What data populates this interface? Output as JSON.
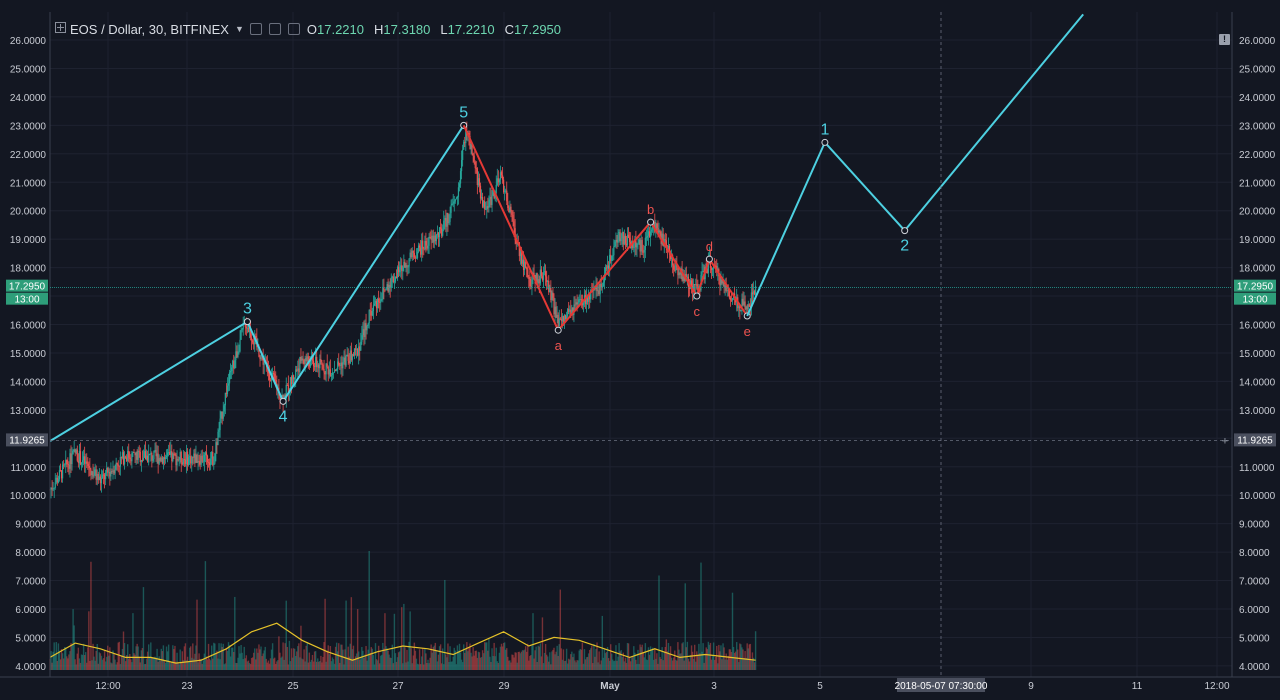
{
  "legend": {
    "symbol": "EOS / Dollar, 30, BITFINEX",
    "open_label": "O",
    "open": "17.2210",
    "high_label": "H",
    "high": "17.3180",
    "low_label": "L",
    "low": "17.2210",
    "close_label": "C",
    "close": "17.2950"
  },
  "chart_data": {
    "type": "candlestick",
    "y_ticks": [
      "26.0000",
      "25.0000",
      "24.0000",
      "23.0000",
      "22.0000",
      "21.0000",
      "20.0000",
      "19.0000",
      "18.0000",
      "17.0000",
      "16.0000",
      "15.0000",
      "14.0000",
      "13.0000",
      "12.0000",
      "11.0000",
      "10.0000",
      "9.0000",
      "8.0000",
      "7.0000",
      "6.0000",
      "5.0000",
      "4.0000"
    ],
    "x_ticks": [
      "12:00",
      "23",
      "25",
      "27",
      "29",
      "May",
      "3",
      "5",
      "9",
      "11",
      "12:00"
    ],
    "price_label": "17.2950",
    "price_time_label": "13:00",
    "crosshair_price_label": "11.9265",
    "crosshair_time_label": "2018-05-07 07:30:00",
    "price_series": [
      {
        "t": "Apr 21 00:00",
        "v": 10.2
      },
      {
        "t": "Apr 21 12:00",
        "v": 11.5
      },
      {
        "t": "Apr 22 00:00",
        "v": 10.5
      },
      {
        "t": "Apr 22 12:00",
        "v": 11.4
      },
      {
        "t": "Apr 23 12:00",
        "v": 11.3
      },
      {
        "t": "Apr 24 06:00",
        "v": 11.3
      },
      {
        "t": "Apr 24 12:00",
        "v": 13.7
      },
      {
        "t": "Apr 24 21:00",
        "v": 16.1
      },
      {
        "t": "Apr 25 07:00",
        "v": 14.5
      },
      {
        "t": "Apr 25 15:00",
        "v": 13.4
      },
      {
        "t": "Apr 26 00:00",
        "v": 14.8
      },
      {
        "t": "Apr 26 14:00",
        "v": 14.4
      },
      {
        "t": "Apr 27 02:00",
        "v": 15.0
      },
      {
        "t": "Apr 27 09:00",
        "v": 16.5
      },
      {
        "t": "Apr 27 18:00",
        "v": 17.5
      },
      {
        "t": "Apr 28 07:00",
        "v": 18.6
      },
      {
        "t": "Apr 28 18:00",
        "v": 19.2
      },
      {
        "t": "Apr 29 02:00",
        "v": 20.5
      },
      {
        "t": "Apr 29 06:00",
        "v": 22.9
      },
      {
        "t": "Apr 29 15:00",
        "v": 20.0
      },
      {
        "t": "Apr 29 23:00",
        "v": 21.2
      },
      {
        "t": "Apr 30 06:00",
        "v": 19.0
      },
      {
        "t": "Apr 30 12:00",
        "v": 17.5
      },
      {
        "t": "Apr 30 20:00",
        "v": 17.8
      },
      {
        "t": "May 1 02:00",
        "v": 16.0
      },
      {
        "t": "May 1 12:00",
        "v": 16.7
      },
      {
        "t": "May 1 21:00",
        "v": 17.2
      },
      {
        "t": "May 2 07:00",
        "v": 19.1
      },
      {
        "t": "May 2 18:00",
        "v": 18.7
      },
      {
        "t": "May 3 00:00",
        "v": 19.5
      },
      {
        "t": "May 3 10:00",
        "v": 18.0
      },
      {
        "t": "May 3 20:00",
        "v": 17.2
      },
      {
        "t": "May 4 02:00",
        "v": 18.2
      },
      {
        "t": "May 4 12:00",
        "v": 17.0
      },
      {
        "t": "May 4 20:00",
        "v": 16.5
      },
      {
        "t": "May 5 00:00",
        "v": 17.3
      }
    ],
    "volume_ma": [
      {
        "t": "Apr 21 00:00",
        "v": 4.3
      },
      {
        "t": "Apr 21 12:00",
        "v": 4.8
      },
      {
        "t": "Apr 22 00:00",
        "v": 4.6
      },
      {
        "t": "Apr 22 12:00",
        "v": 4.3
      },
      {
        "t": "Apr 23 00:00",
        "v": 4.3
      },
      {
        "t": "Apr 23 12:00",
        "v": 4.1
      },
      {
        "t": "Apr 24 00:00",
        "v": 4.2
      },
      {
        "t": "Apr 24 12:00",
        "v": 4.6
      },
      {
        "t": "Apr 25 00:00",
        "v": 5.2
      },
      {
        "t": "Apr 25 12:00",
        "v": 5.5
      },
      {
        "t": "Apr 26 00:00",
        "v": 4.9
      },
      {
        "t": "Apr 26 12:00",
        "v": 4.5
      },
      {
        "t": "Apr 27 00:00",
        "v": 4.2
      },
      {
        "t": "Apr 27 12:00",
        "v": 4.5
      },
      {
        "t": "Apr 28 00:00",
        "v": 4.7
      },
      {
        "t": "Apr 28 12:00",
        "v": 4.6
      },
      {
        "t": "Apr 29 00:00",
        "v": 4.4
      },
      {
        "t": "Apr 29 12:00",
        "v": 4.8
      },
      {
        "t": "Apr 30 00:00",
        "v": 5.2
      },
      {
        "t": "Apr 30 12:00",
        "v": 4.7
      },
      {
        "t": "May 1 00:00",
        "v": 5.0
      },
      {
        "t": "May 1 12:00",
        "v": 4.9
      },
      {
        "t": "May 2 00:00",
        "v": 4.6
      },
      {
        "t": "May 2 12:00",
        "v": 4.3
      },
      {
        "t": "May 3 00:00",
        "v": 4.6
      },
      {
        "t": "May 3 12:00",
        "v": 4.3
      },
      {
        "t": "May 4 00:00",
        "v": 4.4
      },
      {
        "t": "May 4 12:00",
        "v": 4.3
      },
      {
        "t": "May 5 00:00",
        "v": 4.2
      }
    ],
    "wave_impulse": [
      {
        "label": "",
        "t": "Apr 21 00:00",
        "v": 11.9
      },
      {
        "label": "3",
        "t": "Apr 24 22:00",
        "v": 16.1
      },
      {
        "label": "4",
        "t": "Apr 25 15:00",
        "v": 13.3
      },
      {
        "label": "5",
        "t": "Apr 29 05:00",
        "v": 23.0
      }
    ],
    "wave_correction": [
      {
        "label": "",
        "t": "Apr 29 05:00",
        "v": 23.0
      },
      {
        "label": "a",
        "t": "May 1 02:00",
        "v": 15.8
      },
      {
        "label": "b",
        "t": "May 2 22:00",
        "v": 19.6
      },
      {
        "label": "c",
        "t": "May 3 20:00",
        "v": 17.0
      },
      {
        "label": "d",
        "t": "May 4 02:00",
        "v": 18.3
      },
      {
        "label": "e",
        "t": "May 4 20:00",
        "v": 16.3
      }
    ],
    "wave_projection": [
      {
        "label": "",
        "t": "May 4 20:00",
        "v": 16.3
      },
      {
        "label": "1",
        "t": "May 6 09:00",
        "v": 22.4
      },
      {
        "label": "2",
        "t": "May 7 23:00",
        "v": 19.3
      },
      {
        "label": "",
        "t": "May 11 12:00",
        "v": 26.9
      }
    ],
    "colors": {
      "background": "#131722",
      "impulse": "#4dd0e1",
      "correction": "#e53935",
      "up_candle": "#26a69a",
      "down_candle": "#ef5350",
      "volume_ma": "#e6c229",
      "price_tag": "#2e9e7a"
    }
  }
}
